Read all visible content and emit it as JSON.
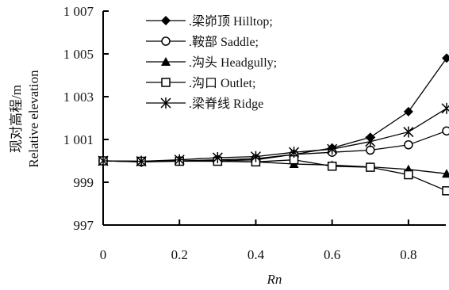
{
  "chart_data": {
    "type": "line",
    "xlabel": "Rn",
    "ylabel_lines": [
      "现对高程/m",
      "Relative elevation"
    ],
    "xlim": [
      0,
      0.9
    ],
    "ylim": [
      997,
      1007
    ],
    "xticks": [
      0,
      0.2,
      0.4,
      0.6,
      0.8
    ],
    "xtick_labels": [
      "0",
      "0.2",
      "0.4",
      "0.6",
      "0.8"
    ],
    "yticks": [
      997,
      999,
      1001,
      1003,
      1005,
      1007
    ],
    "ytick_labels": [
      "997",
      "999",
      "1 001",
      "1 003",
      "1 005",
      "1 007"
    ],
    "legend_position": "top-left",
    "x": [
      0,
      0.1,
      0.2,
      0.3,
      0.4,
      0.5,
      0.6,
      0.7,
      0.8,
      0.9
    ],
    "series": [
      {
        "name": ".梁峁顶 Hilltop;",
        "marker": "diamond-filled",
        "values": [
          1000,
          999.95,
          999.98,
          1000,
          1000.05,
          1000.3,
          1000.6,
          1001.1,
          1002.3,
          1004.8
        ]
      },
      {
        "name": ".鞍部 Saddle;",
        "marker": "circle-open",
        "values": [
          1000,
          999.95,
          1000,
          1000.05,
          1000.1,
          1000.3,
          1000.4,
          1000.5,
          1000.75,
          1001.4
        ]
      },
      {
        "name": ".沟头 Headgully;",
        "marker": "triangle-filled",
        "values": [
          1000,
          999.98,
          1000,
          999.98,
          999.95,
          999.85,
          999.8,
          999.72,
          999.6,
          999.4
        ]
      },
      {
        "name": ".沟口 Outlet;",
        "marker": "square-open",
        "values": [
          1000,
          999.98,
          999.98,
          999.98,
          999.95,
          1000.05,
          999.75,
          999.7,
          999.35,
          998.6
        ]
      },
      {
        "name": ".梁脊线 Ridge",
        "marker": "asterisk",
        "values": [
          1000,
          999.98,
          1000.05,
          1000.15,
          1000.2,
          1000.4,
          1000.55,
          1000.9,
          1001.35,
          1002.45
        ]
      }
    ]
  }
}
